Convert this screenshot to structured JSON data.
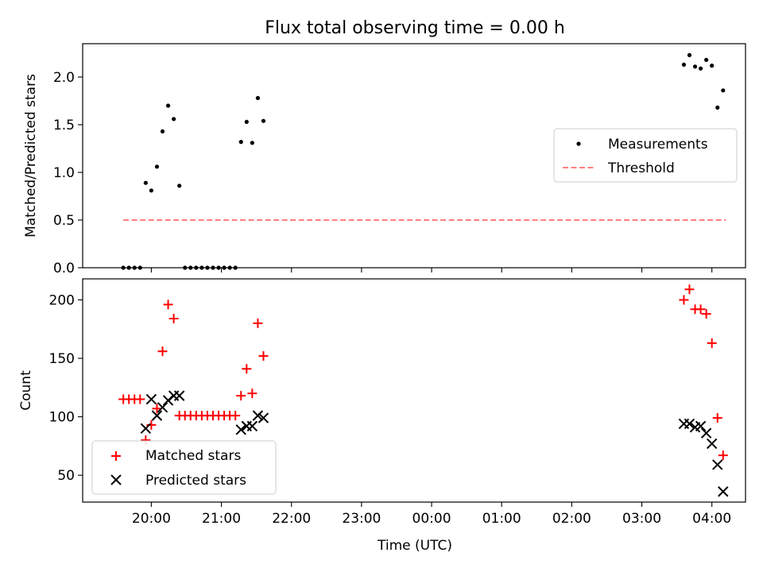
{
  "chart_data": [
    {
      "type": "scatter",
      "title": "Flux total observing time = 0.00 h",
      "xlabel": "",
      "ylabel": "Matched/Predicted stars",
      "x_unit": "hours UTC (values past 24 are after midnight)",
      "xlim": [
        19.02,
        28.48
      ],
      "ylim": [
        0.0,
        2.35
      ],
      "x_ticks": [
        20,
        21,
        22,
        23,
        24,
        25,
        26,
        27,
        28
      ],
      "y_ticks": [
        0.0,
        0.5,
        1.0,
        1.5,
        2.0
      ],
      "y_tick_labels": [
        "0.0",
        "0.5",
        "1.0",
        "1.5",
        "2.0"
      ],
      "legend_position": "right",
      "series": [
        {
          "name": "Measurements",
          "color": "#000000",
          "marker": "dot",
          "x": [
            19.6,
            19.68,
            19.76,
            19.84,
            19.92,
            20.0,
            20.08,
            20.16,
            20.24,
            20.32,
            20.4,
            20.48,
            20.56,
            20.64,
            20.72,
            20.8,
            20.88,
            20.96,
            21.04,
            21.12,
            21.2,
            21.28,
            21.36,
            21.44,
            21.52,
            21.6,
            27.6,
            27.68,
            27.76,
            27.84,
            27.92,
            28.0,
            28.08,
            28.16
          ],
          "y": [
            0.0,
            0.0,
            0.0,
            0.0,
            0.89,
            0.81,
            1.06,
            1.43,
            1.7,
            1.56,
            0.86,
            0.0,
            0.0,
            0.0,
            0.0,
            0.0,
            0.0,
            0.0,
            0.0,
            0.0,
            0.0,
            1.32,
            1.53,
            1.31,
            1.78,
            1.54,
            2.13,
            2.23,
            2.11,
            2.09,
            2.18,
            2.12,
            1.68,
            1.86
          ]
        },
        {
          "name": "Threshold",
          "color": "#ff7f7f",
          "style": "dashed-line",
          "x": [
            19.6,
            28.2
          ],
          "y": [
            0.5,
            0.5
          ]
        }
      ]
    },
    {
      "type": "scatter",
      "title": "",
      "xlabel": "Time (UTC)",
      "ylabel": "Count",
      "x_unit": "hours UTC (values past 24 are after midnight)",
      "xlim": [
        19.02,
        28.48
      ],
      "ylim": [
        27,
        218
      ],
      "x_ticks": [
        20,
        21,
        22,
        23,
        24,
        25,
        26,
        27,
        28
      ],
      "x_tick_labels": [
        "20:00",
        "21:00",
        "22:00",
        "23:00",
        "00:00",
        "01:00",
        "02:00",
        "03:00",
        "04:00"
      ],
      "y_ticks": [
        50,
        100,
        150,
        200
      ],
      "y_tick_labels": [
        "50",
        "100",
        "150",
        "200"
      ],
      "legend_position": "lower-left",
      "series": [
        {
          "name": "Matched stars",
          "color": "#ff0000",
          "marker": "plus",
          "x": [
            19.6,
            19.68,
            19.76,
            19.84,
            19.92,
            20.0,
            20.08,
            20.16,
            20.24,
            20.32,
            20.4,
            20.48,
            20.56,
            20.64,
            20.72,
            20.8,
            20.88,
            20.96,
            21.04,
            21.12,
            21.2,
            21.28,
            21.36,
            21.44,
            21.52,
            21.6,
            27.6,
            27.68,
            27.76,
            27.84,
            27.92,
            28.0,
            28.08,
            28.16
          ],
          "y": [
            115,
            115,
            115,
            115,
            80,
            93,
            107,
            156,
            196,
            184,
            101,
            101,
            101,
            101,
            101,
            101,
            101,
            101,
            101,
            101,
            101,
            118,
            141,
            120,
            180,
            152,
            200,
            209,
            192,
            192,
            188,
            163,
            99,
            67
          ]
        },
        {
          "name": "Predicted stars",
          "color": "#000000",
          "marker": "x",
          "x": [
            19.92,
            20.0,
            20.08,
            20.16,
            20.24,
            20.32,
            20.4,
            21.28,
            21.36,
            21.44,
            21.52,
            21.6,
            27.6,
            27.68,
            27.76,
            27.84,
            27.92,
            28.0,
            28.08,
            28.16
          ],
          "y": [
            90,
            115,
            101,
            108,
            114,
            118,
            118,
            89,
            92,
            92,
            101,
            99,
            94,
            94,
            91,
            92,
            86,
            77,
            59,
            36
          ]
        }
      ]
    }
  ]
}
